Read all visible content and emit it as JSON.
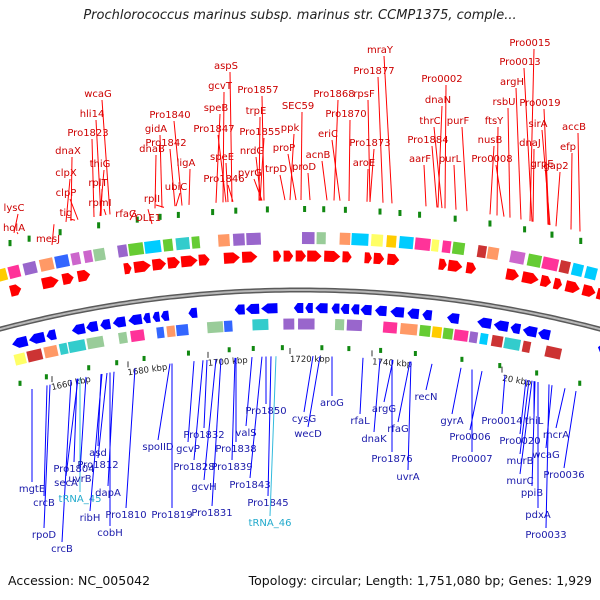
{
  "title": "Prochlorococcus marinus subsp. marinus str. CCMP1375, comple...",
  "footer": {
    "accession": "Accession: NC_005042",
    "summary": "Topology: circular; Length: 1,751,080 bp; Genes: 1,929"
  },
  "colors": {
    "forward_gene": "#ff0000",
    "reverse_gene": "#0000ff",
    "trna": "#33bbdd",
    "backbone": "#888888"
  },
  "ticks": [
    "1660 kbp",
    "1680 kbp",
    "1700 kbp",
    "1720 kbp",
    "1740 kbp",
    "20 kbp"
  ],
  "top_labels": [
    "lysC",
    "holA",
    "mesJ",
    "tig",
    "clpP",
    "clpX",
    "dnaX",
    "Pro1823",
    "hli14",
    "wcaG",
    "thiG",
    "rplT",
    "rpmI",
    "rfaG",
    "rplI",
    "OLE1",
    "dnaB",
    "gidA",
    "Pro1842",
    "Pro1840",
    "ubiC",
    "ligA",
    "speE",
    "Pro1846",
    "Pro1847",
    "speB",
    "gcvT",
    "aspS",
    "nrdG",
    "pyrG",
    "Pro1855",
    "trpE",
    "Pro1857",
    "trpD",
    "proP",
    "ppk",
    "SEC59",
    "proD",
    "acnB",
    "eriC",
    "Pro1868",
    "Pro1870",
    "rpsF",
    "Pro1877",
    "mraY",
    "Pro1873",
    "aroE",
    "aarF",
    "Pro1884",
    "thrC",
    "dnaN",
    "Pro0002",
    "purL",
    "purF",
    "Pro0008",
    "nusB",
    "ftsY",
    "rsbU",
    "argH",
    "Pro0013",
    "Pro0015",
    "dnaJ",
    "grpE",
    "Pro0019",
    "sirA",
    "gap2",
    "efp",
    "accB"
  ],
  "bottom_labels": [
    "mgtE",
    "crcB",
    "rpoD",
    "crcB",
    "secA",
    "tRNA_45",
    "Pro1804",
    "uvrB",
    "Pro1812",
    "ribH",
    "cobH",
    "asd",
    "dapA",
    "Pro1810",
    "spoIID",
    "Pro1819",
    "Pro1832",
    "gcvP",
    "Pro1828",
    "gcvH",
    "Pro1838",
    "Pro1839",
    "valS",
    "Pro1831",
    "Pro1843",
    "Pro1850",
    "Pro1845",
    "tRNA_46",
    "cysG",
    "wecD",
    "aroG",
    "rfaL",
    "dnaK",
    "argG",
    "rfaG",
    "Pro1876",
    "uvrA",
    "recN",
    "gyrA",
    "Pro0006",
    "Pro0007",
    "Pro0014",
    "Pro0020",
    "murB",
    "murC",
    "thiL",
    "ppiB",
    "wcaG",
    "mcrA",
    "Pro0036",
    "pdxA",
    "Pro0033"
  ]
}
